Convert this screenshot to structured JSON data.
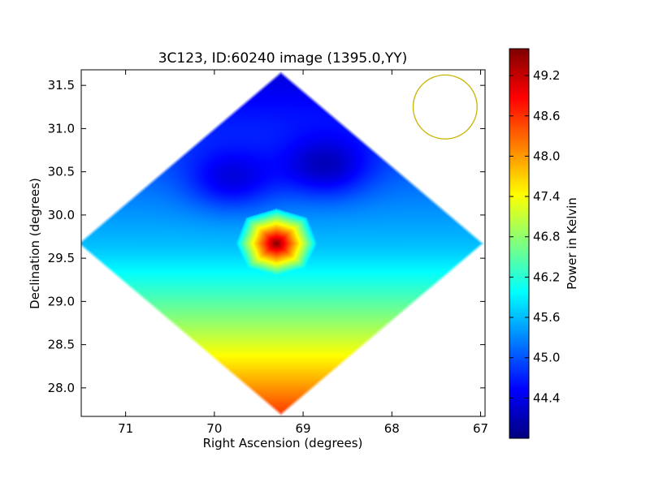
{
  "chart_data": {
    "type": "heatmap",
    "title": "3C123, ID:60240 image (1395.0,YY)",
    "xlabel": "Right Ascension (degrees)",
    "ylabel": "Declination (degrees)",
    "xlim": [
      71.5,
      66.95
    ],
    "ylim": [
      27.67,
      31.68
    ],
    "x_ticks": [
      "71",
      "70",
      "69",
      "68",
      "67"
    ],
    "x_tick_values": [
      71,
      70,
      69,
      68,
      67
    ],
    "y_ticks": [
      "28.0",
      "28.5",
      "29.0",
      "29.5",
      "30.0",
      "30.5",
      "31.0",
      "31.5"
    ],
    "y_tick_values": [
      28.0,
      28.5,
      29.0,
      29.5,
      30.0,
      30.5,
      31.0,
      31.5
    ],
    "grid": false,
    "colormap": "jet",
    "colorbar": {
      "label": "Power in Kelvin",
      "range": [
        43.8,
        49.6
      ],
      "ticks": [
        "44.4",
        "45.0",
        "45.6",
        "46.2",
        "46.8",
        "47.4",
        "48.0",
        "48.6",
        "49.2"
      ],
      "tick_values": [
        44.4,
        45.0,
        45.6,
        46.2,
        46.8,
        47.4,
        48.0,
        48.6,
        49.2
      ]
    },
    "map": {
      "center": [
        69.25,
        29.67
      ],
      "half_width_ra": 2.3,
      "half_width_dec": 2.0,
      "background_level": 45.6,
      "south_gradient": 3.0,
      "hotspot": {
        "center": [
          69.3,
          29.67
        ],
        "peak": 49.6,
        "half_size_ra": 0.4,
        "half_size_dec": 0.35
      },
      "cool_spots": [
        {
          "center": [
            68.75,
            30.55
          ],
          "level": 44.0
        },
        {
          "center": [
            69.8,
            30.4
          ],
          "level": 44.2
        }
      ]
    },
    "annotations": [
      {
        "type": "circle",
        "center": [
          67.4,
          31.25
        ],
        "radius_dec": 0.37,
        "color": "#c8b400"
      }
    ]
  }
}
